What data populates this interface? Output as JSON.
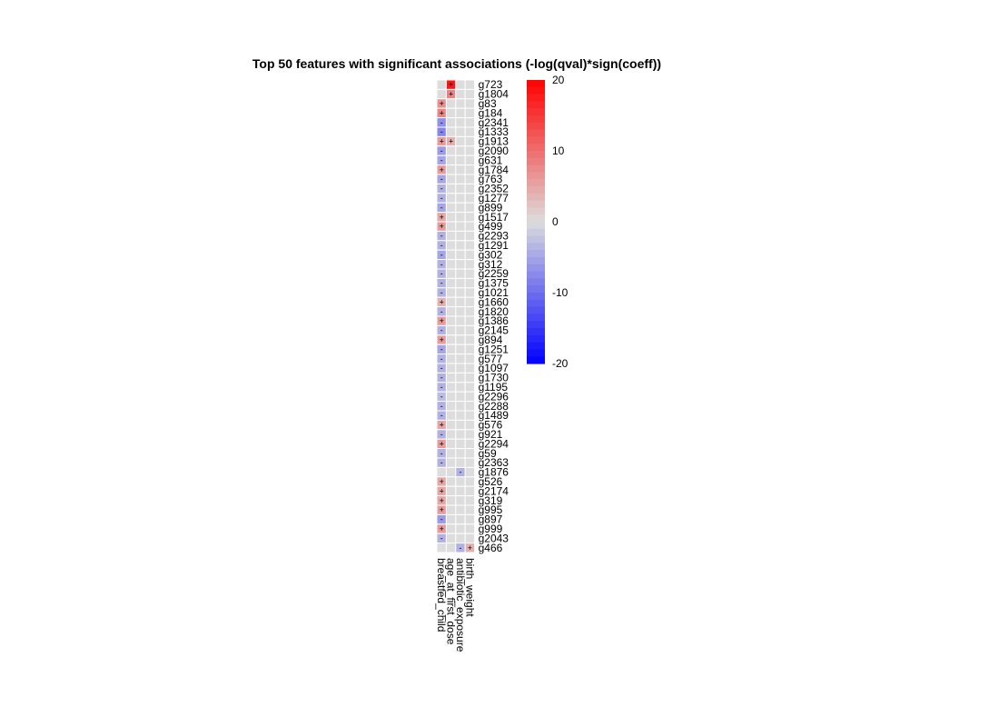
{
  "title": "Top 50 features with significant associations (-log(qval)*sign(coeff))",
  "chart_data": {
    "type": "heatmap",
    "title": "Top 50 features with significant associations (-log(qval)*sign(coeff))",
    "columns": [
      "breastfed_child",
      "age_at_first_dose",
      "antibiotic_exposure",
      "birth_weight"
    ],
    "rows": [
      "g723",
      "g1804",
      "g83",
      "g184",
      "g2341",
      "g1333",
      "g1913",
      "g2090",
      "g631",
      "g1784",
      "g763",
      "g2352",
      "g1277",
      "g899",
      "g1517",
      "g499",
      "g2293",
      "g1291",
      "g302",
      "g312",
      "g2259",
      "g1375",
      "g1021",
      "g1660",
      "g1820",
      "g1386",
      "g2145",
      "g894",
      "g1251",
      "g577",
      "g1097",
      "g1730",
      "g1195",
      "g2296",
      "g2288",
      "g1489",
      "g576",
      "g921",
      "g2294",
      "g59",
      "g2363",
      "g1876",
      "g526",
      "g2174",
      "g319",
      "g995",
      "g897",
      "g999",
      "g2043",
      "g466"
    ],
    "values": [
      [
        0,
        18,
        0,
        0
      ],
      [
        0,
        8,
        0,
        0
      ],
      [
        7,
        0,
        0,
        0
      ],
      [
        8,
        0,
        0,
        0
      ],
      [
        -7,
        0,
        0,
        0
      ],
      [
        -8,
        0,
        0,
        0
      ],
      [
        6,
        4,
        0,
        0
      ],
      [
        -6,
        0,
        0,
        0
      ],
      [
        -5,
        0,
        0,
        0
      ],
      [
        6,
        0,
        0,
        0
      ],
      [
        -5,
        0,
        0,
        0
      ],
      [
        -4,
        0,
        0,
        0
      ],
      [
        -4,
        0,
        0,
        0
      ],
      [
        -5,
        0,
        0,
        0
      ],
      [
        5,
        0,
        0,
        0
      ],
      [
        6,
        0,
        0,
        0
      ],
      [
        -4,
        0,
        0,
        0
      ],
      [
        -4,
        0,
        0,
        0
      ],
      [
        -5,
        0,
        0,
        0
      ],
      [
        -4,
        0,
        0,
        0
      ],
      [
        -4,
        0,
        0,
        0
      ],
      [
        -4,
        0,
        0,
        0
      ],
      [
        -4,
        0,
        0,
        0
      ],
      [
        4,
        0,
        0,
        0
      ],
      [
        -4,
        0,
        0,
        0
      ],
      [
        6,
        0,
        0,
        0
      ],
      [
        -4,
        0,
        0,
        0
      ],
      [
        6,
        0,
        0,
        0
      ],
      [
        -5,
        0,
        0,
        0
      ],
      [
        -4,
        0,
        0,
        0
      ],
      [
        -4,
        0,
        0,
        0
      ],
      [
        -4,
        0,
        0,
        0
      ],
      [
        -4,
        0,
        0,
        0
      ],
      [
        -3,
        0,
        0,
        0
      ],
      [
        -4,
        0,
        0,
        0
      ],
      [
        -4,
        0,
        0,
        0
      ],
      [
        5,
        0,
        0,
        0
      ],
      [
        -4,
        0,
        0,
        0
      ],
      [
        6,
        0,
        0,
        0
      ],
      [
        -4,
        0,
        0,
        0
      ],
      [
        -4,
        0,
        0,
        0
      ],
      [
        0,
        0,
        -4,
        0
      ],
      [
        5,
        0,
        0,
        0
      ],
      [
        5,
        0,
        0,
        0
      ],
      [
        5,
        0,
        0,
        0
      ],
      [
        6,
        0,
        0,
        0
      ],
      [
        -6,
        0,
        0,
        0
      ],
      [
        6,
        0,
        0,
        0
      ],
      [
        -4,
        0,
        0,
        0
      ],
      [
        0,
        0,
        -4,
        4
      ]
    ],
    "marks": [
      [
        "",
        "+",
        "",
        ""
      ],
      [
        "",
        "+",
        "",
        ""
      ],
      [
        "+",
        "",
        "",
        ""
      ],
      [
        "+",
        "",
        "",
        ""
      ],
      [
        "-",
        "",
        "",
        ""
      ],
      [
        "-",
        "",
        "",
        ""
      ],
      [
        "+",
        "+",
        "",
        ""
      ],
      [
        "-",
        "",
        "",
        ""
      ],
      [
        "-",
        "",
        "",
        ""
      ],
      [
        "+",
        "",
        "",
        ""
      ],
      [
        "-",
        "",
        "",
        ""
      ],
      [
        "-",
        "",
        "",
        ""
      ],
      [
        "-",
        "",
        "",
        ""
      ],
      [
        "-",
        "",
        "",
        ""
      ],
      [
        "+",
        "",
        "",
        ""
      ],
      [
        "+",
        "",
        "",
        ""
      ],
      [
        "-",
        "",
        "",
        ""
      ],
      [
        "-",
        "",
        "",
        ""
      ],
      [
        "-",
        "",
        "",
        ""
      ],
      [
        "-",
        "",
        "",
        ""
      ],
      [
        "-",
        "",
        "",
        ""
      ],
      [
        "-",
        "",
        "",
        ""
      ],
      [
        "-",
        "",
        "",
        ""
      ],
      [
        "+",
        "",
        "",
        ""
      ],
      [
        "-",
        "",
        "",
        ""
      ],
      [
        "+",
        "",
        "",
        ""
      ],
      [
        "-",
        "",
        "",
        ""
      ],
      [
        "+",
        "",
        "",
        ""
      ],
      [
        "-",
        "",
        "",
        ""
      ],
      [
        "-",
        "",
        "",
        ""
      ],
      [
        "-",
        "",
        "",
        ""
      ],
      [
        "-",
        "",
        "",
        ""
      ],
      [
        "-",
        "",
        "",
        ""
      ],
      [
        "-",
        "",
        "",
        ""
      ],
      [
        "-",
        "",
        "",
        ""
      ],
      [
        "-",
        "",
        "",
        ""
      ],
      [
        "+",
        "",
        "",
        ""
      ],
      [
        "-",
        "",
        "",
        ""
      ],
      [
        "+",
        "",
        "",
        ""
      ],
      [
        "-",
        "",
        "",
        ""
      ],
      [
        "-",
        "",
        "",
        ""
      ],
      [
        "",
        "",
        "-",
        ""
      ],
      [
        "+",
        "",
        "",
        ""
      ],
      [
        "+",
        "",
        "",
        ""
      ],
      [
        "+",
        "",
        "",
        ""
      ],
      [
        "+",
        "",
        "",
        ""
      ],
      [
        "-",
        "",
        "",
        ""
      ],
      [
        "+",
        "",
        "",
        ""
      ],
      [
        "-",
        "",
        "",
        ""
      ],
      [
        "",
        "",
        "-",
        "+"
      ]
    ],
    "colorbar": {
      "min": -20,
      "max": 20,
      "ticks": [
        20,
        10,
        0,
        -10,
        -20
      ]
    },
    "colors": {
      "low": "#0000ff",
      "mid": "#dddddd",
      "high": "#ff0000"
    }
  }
}
